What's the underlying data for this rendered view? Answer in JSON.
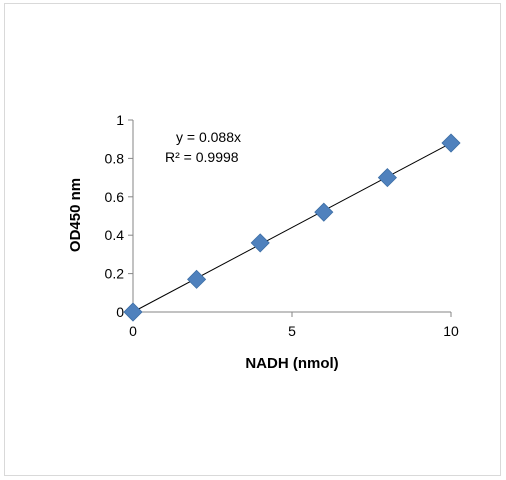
{
  "chart_data": {
    "type": "scatter",
    "title": "",
    "xlabel": "NADH (nmol)",
    "ylabel": "OD450 nm",
    "xlim": [
      0,
      10
    ],
    "ylim": [
      0,
      1
    ],
    "xticks": [
      "0",
      "5",
      "10"
    ],
    "yticks": [
      "0",
      "0.2",
      "0.4",
      "0.6",
      "0.8",
      "1"
    ],
    "grid": false,
    "legend": "none",
    "series": [
      {
        "marker": "diamond",
        "color": "#4f81bd",
        "x": [
          0,
          2,
          4,
          6,
          8,
          10
        ],
        "y": [
          0,
          0.17,
          0.36,
          0.52,
          0.7,
          0.88
        ]
      }
    ],
    "trendline": {
      "type": "linear",
      "slope": 0.088,
      "intercept": 0,
      "color": "#000000"
    },
    "annotations": [
      "y = 0.088x",
      "R² = 0.9998"
    ]
  }
}
